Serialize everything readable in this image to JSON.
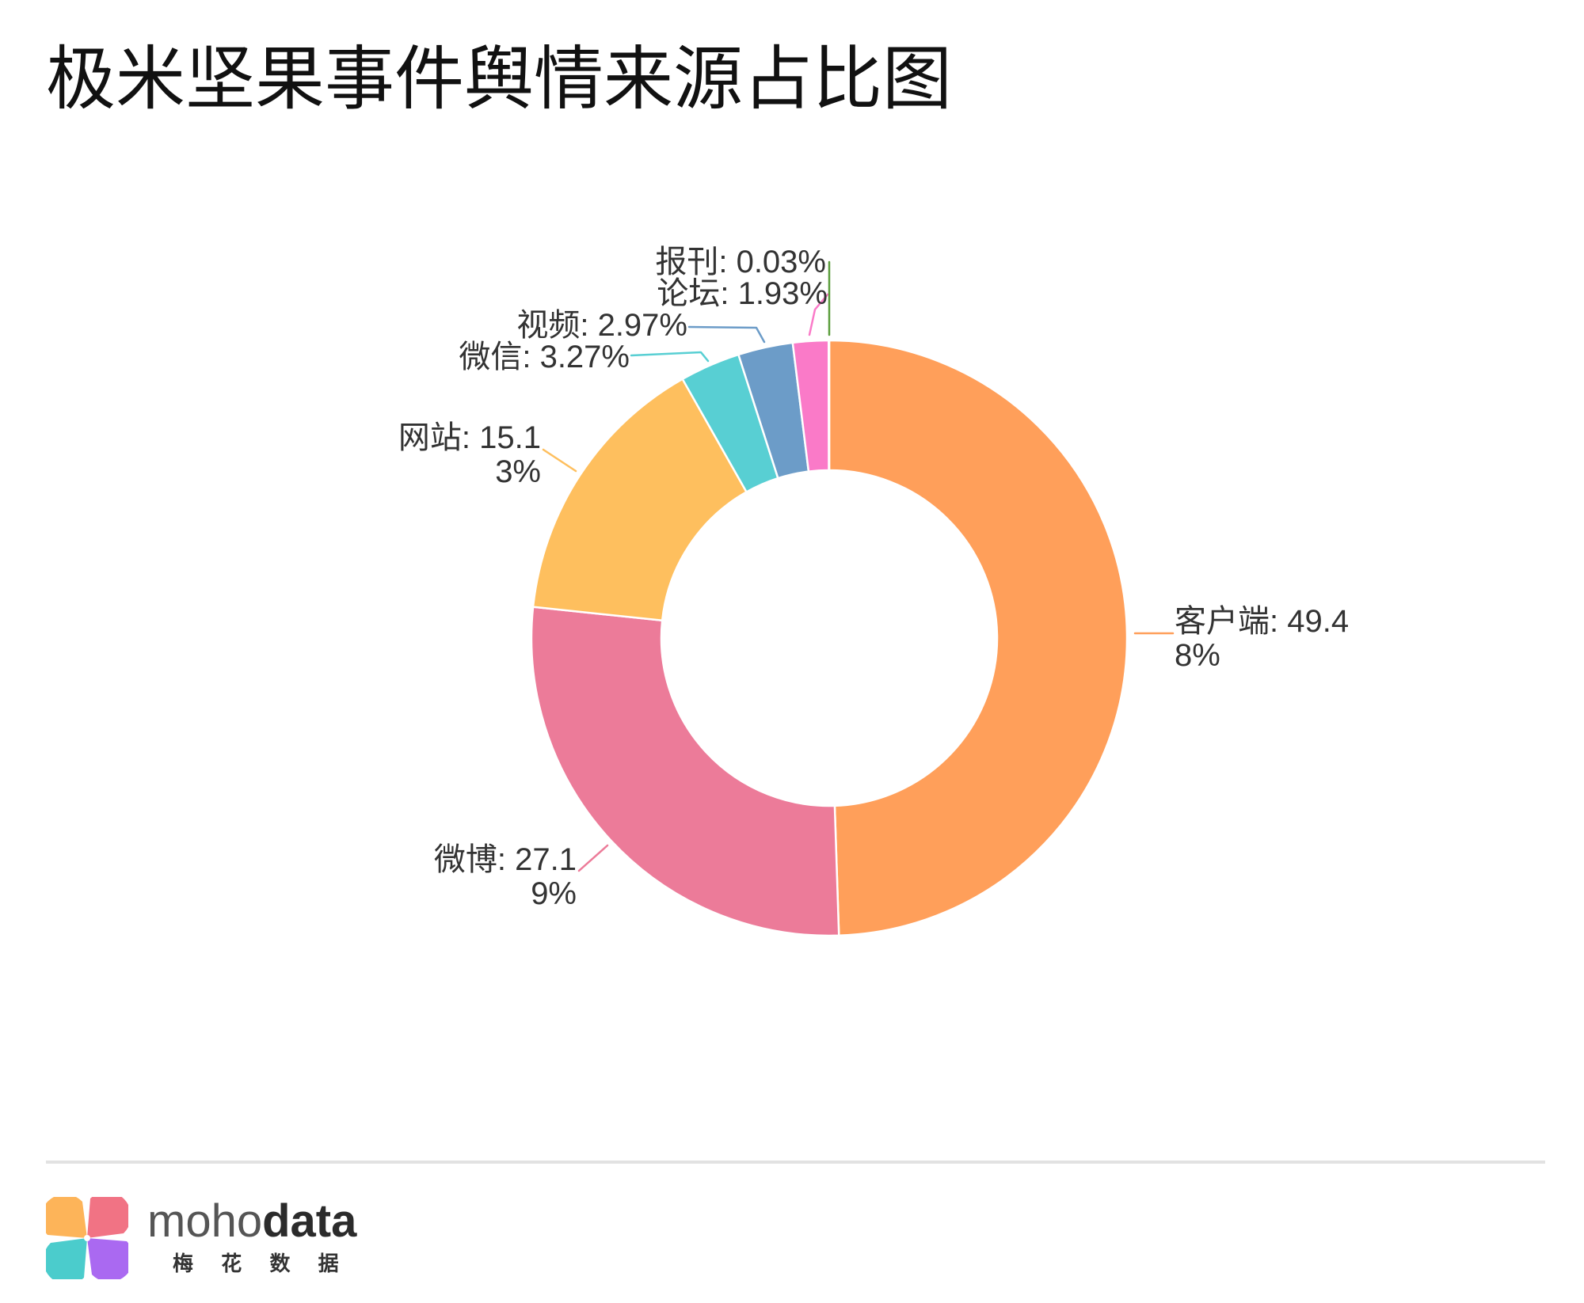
{
  "chart_data": {
    "type": "pie",
    "donut": true,
    "title": "极米坚果事件舆情来源占比图",
    "categories": [
      "客户端",
      "微博",
      "网站",
      "微信",
      "视频",
      "论坛",
      "报刊"
    ],
    "values": [
      49.48,
      27.19,
      15.13,
      3.27,
      2.97,
      1.93,
      0.03
    ],
    "unit": "%",
    "colors": [
      "#FF9F5A",
      "#EC7B99",
      "#FEBF5E",
      "#58CFD3",
      "#6C9CC8",
      "#FA7AC8",
      "#5B9E3C"
    ],
    "legend": "none"
  },
  "logo": {
    "icon": "pinwheel-icon",
    "wordmark_light": "moho",
    "wordmark_bold": "data",
    "subtitle": "梅 花 数 据",
    "petal_colors": [
      "#FDAE4B",
      "#F0677A",
      "#A35CF0",
      "#3CC8C8"
    ]
  }
}
